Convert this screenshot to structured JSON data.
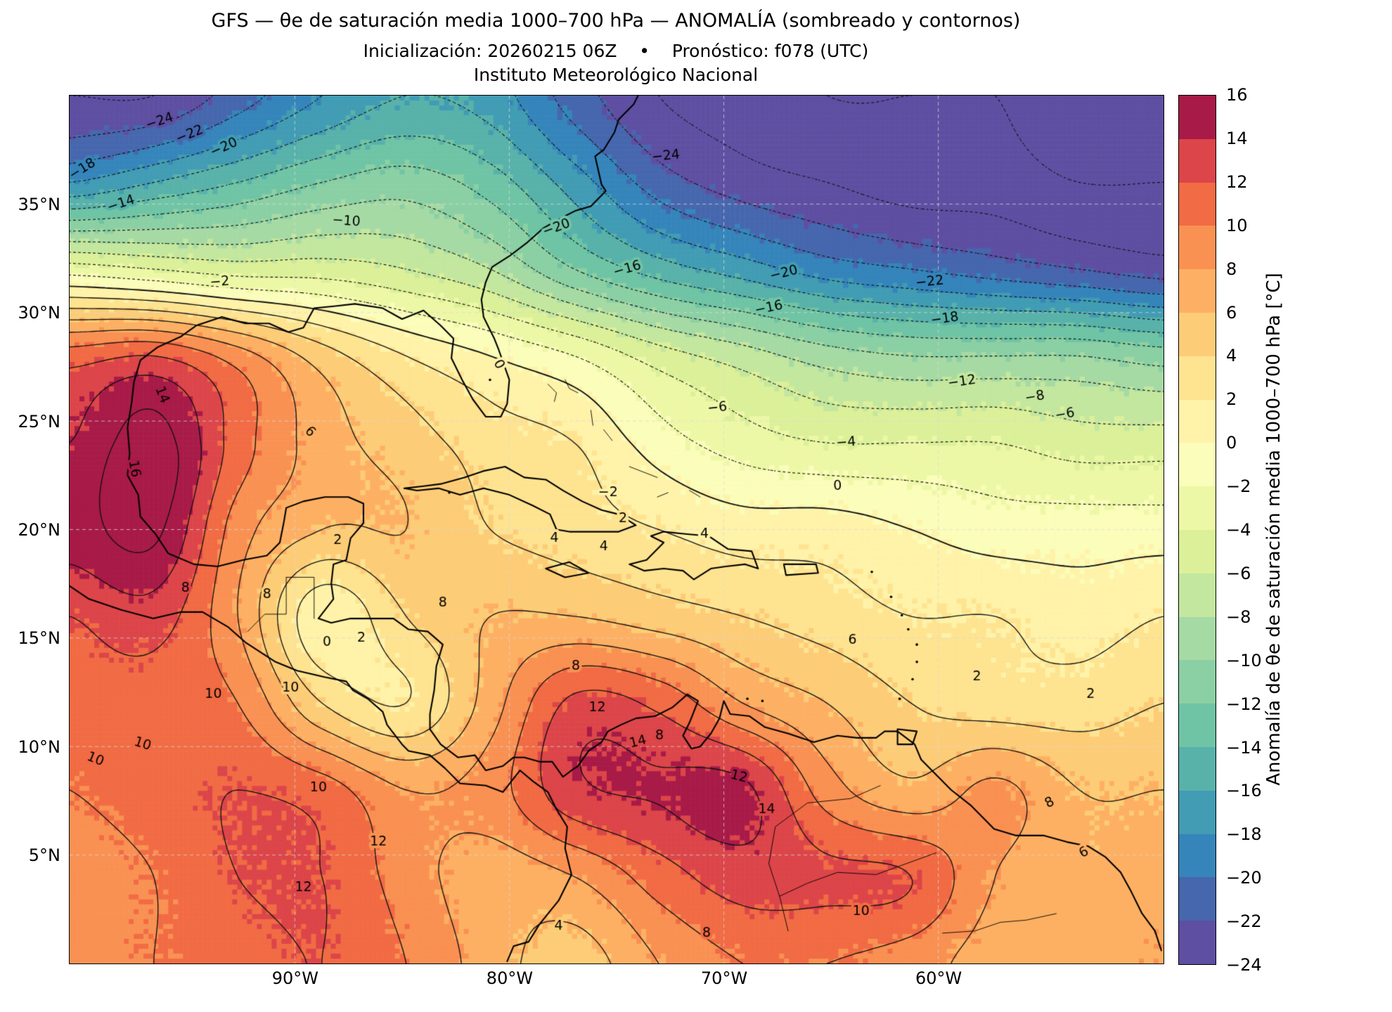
{
  "header": {
    "title": "GFS — θe de saturación media 1000–700 hPa — ANOMALÍA (sombreado y contornos)",
    "subtitle": "Inicialización: 20260215 06Z    •    Pronóstico: f078 (UTC)",
    "institution": "Instituto Meteorológico Nacional"
  },
  "chart_data": {
    "type": "heatmap",
    "model": "GFS",
    "variable": "θe de saturación media 1000–700 hPa",
    "mode": "ANOMALÍA (sombreado y contornos)",
    "init": "20260215 06Z",
    "forecast": "f078 (UTC)",
    "units": "°C",
    "lon_range": [
      -100.5,
      -49.5
    ],
    "lat_range": [
      0,
      40
    ],
    "x_ticks": [
      {
        "value": -90,
        "label": "90°W"
      },
      {
        "value": -80,
        "label": "80°W"
      },
      {
        "value": -70,
        "label": "70°W"
      },
      {
        "value": -60,
        "label": "60°W"
      }
    ],
    "y_ticks": [
      {
        "value": 35,
        "label": "35°N"
      },
      {
        "value": 30,
        "label": "30°N"
      },
      {
        "value": 25,
        "label": "25°N"
      },
      {
        "value": 20,
        "label": "20°N"
      },
      {
        "value": 15,
        "label": "15°N"
      },
      {
        "value": 10,
        "label": "10°N"
      },
      {
        "value": 5,
        "label": "5°N"
      }
    ],
    "contour_min": -26,
    "contour_max": 16,
    "contour_interval": 2,
    "colorbar": {
      "label": "Anomalía de θe de saturación media 1000–700 hPa [°C]",
      "min": -24,
      "max": 16,
      "bin_size": 2,
      "ticks": [
        16,
        14,
        12,
        10,
        8,
        6,
        4,
        2,
        0,
        -2,
        -4,
        -6,
        -8,
        -10,
        -12,
        -14,
        -16,
        -18,
        -20,
        -22,
        -24
      ],
      "palette": [
        "#5e4fa2",
        "#4667ae",
        "#3585bb",
        "#419cb4",
        "#58b2aa",
        "#6fc4a5",
        "#8bd0a4",
        "#a6daa4",
        "#c3e79e",
        "#dbf099",
        "#edf8a6",
        "#fbfdba",
        "#fff2a9",
        "#fee390",
        "#fdcc77",
        "#fdb063",
        "#f99153",
        "#f16b44",
        "#dc4549",
        "#a81a47"
      ]
    },
    "grid": {
      "lons": [
        -100.5,
        -96.6,
        -92.7,
        -88.7,
        -84.8,
        -80.9,
        -77.0,
        -73.0,
        -69.1,
        -65.2,
        -61.3,
        -57.3,
        -53.4,
        -49.5
      ],
      "lats": [
        40,
        36,
        32,
        28,
        24,
        20,
        16,
        12,
        8,
        4,
        0
      ],
      "values_degC": [
        [
          -24,
          -24,
          -21,
          -18,
          -16,
          -17,
          -21,
          -24,
          -25,
          -26,
          -26,
          -26,
          -27,
          -27
        ],
        [
          -18,
          -16,
          -14,
          -12,
          -11,
          -13,
          -17,
          -21,
          -23,
          -24,
          -25,
          -25,
          -26,
          -26
        ],
        [
          -3,
          -4,
          -5,
          -5,
          -6,
          -8,
          -12,
          -15,
          -17,
          -19,
          -20,
          -21,
          -22,
          -23
        ],
        [
          11,
          12,
          9,
          5,
          2,
          0,
          -2,
          -5,
          -7,
          -9,
          -10,
          -10,
          -10,
          -11
        ],
        [
          14,
          17,
          11,
          7,
          5,
          3,
          2,
          -1,
          -3,
          -4,
          -4,
          -4,
          -5,
          -5
        ],
        [
          15,
          16.5,
          9,
          6,
          6,
          4,
          3,
          2,
          1,
          1,
          0,
          -1,
          -1,
          -1
        ],
        [
          12,
          13,
          8,
          0.5,
          4,
          6,
          6,
          5,
          4,
          3,
          2,
          2,
          1,
          2
        ],
        [
          11,
          11,
          10,
          4,
          2,
          7,
          12.5,
          11.5,
          8,
          6,
          4,
          3,
          3,
          4
        ],
        [
          10,
          11,
          12,
          11,
          8,
          9,
          13.5,
          14.2,
          14.5,
          9,
          6.5,
          8.5,
          6,
          6
        ],
        [
          9,
          10,
          12,
          12,
          9,
          7,
          8,
          11,
          13,
          12.5,
          12,
          8,
          6.5,
          7
        ],
        [
          9,
          10,
          11,
          12,
          10,
          7,
          5,
          8,
          10,
          10,
          9,
          7,
          7,
          8
        ]
      ]
    },
    "contour_labels": [
      {
        "v": -24,
        "lon": -96.3,
        "lat": 38.8,
        "a": -18
      },
      {
        "v": -22,
        "lon": -94.9,
        "lat": 38.2,
        "a": -22
      },
      {
        "v": -20,
        "lon": -93.3,
        "lat": 37.6,
        "a": -24
      },
      {
        "v": -18,
        "lon": -99.9,
        "lat": 36.6,
        "a": -32
      },
      {
        "v": -14,
        "lon": -98.1,
        "lat": 35.0,
        "a": -18
      },
      {
        "v": -10,
        "lon": -87.6,
        "lat": 34.2,
        "a": 4
      },
      {
        "v": -2,
        "lon": -93.5,
        "lat": 31.4,
        "a": -4
      },
      {
        "v": -24,
        "lon": -72.7,
        "lat": 37.2,
        "a": -6
      },
      {
        "v": -20,
        "lon": -67.2,
        "lat": 31.8,
        "a": -14
      },
      {
        "v": -16,
        "lon": -67.9,
        "lat": 30.2,
        "a": -12
      },
      {
        "v": -22,
        "lon": -60.4,
        "lat": 31.4,
        "a": -6
      },
      {
        "v": -18,
        "lon": -59.7,
        "lat": 29.7,
        "a": -8
      },
      {
        "v": -12,
        "lon": -58.9,
        "lat": 26.8,
        "a": -8
      },
      {
        "v": -8,
        "lon": -55.5,
        "lat": 26.1,
        "a": -10
      },
      {
        "v": -6,
        "lon": -54.1,
        "lat": 25.3,
        "a": -10
      },
      {
        "v": -4,
        "lon": -64.3,
        "lat": 24.0,
        "a": -4
      },
      {
        "v": -2,
        "lon": -75.4,
        "lat": 21.7,
        "a": 0
      },
      {
        "v": -6,
        "lon": -70.3,
        "lat": 25.6,
        "a": -6
      },
      {
        "v": -16,
        "lon": -74.5,
        "lat": 32.0,
        "a": -16
      },
      {
        "v": -20,
        "lon": -77.8,
        "lat": 33.9,
        "a": -20
      },
      {
        "v": 0,
        "lon": -80.5,
        "lat": 27.6,
        "a": 62
      },
      {
        "v": 0,
        "lon": -64.7,
        "lat": 22.0,
        "a": -2
      },
      {
        "v": 2,
        "lon": -74.7,
        "lat": 20.5,
        "a": 0
      },
      {
        "v": 4,
        "lon": -77.9,
        "lat": 19.6,
        "a": 0
      },
      {
        "v": 4,
        "lon": -75.6,
        "lat": 19.2,
        "a": 0
      },
      {
        "v": 6,
        "lon": -89.3,
        "lat": 24.5,
        "a": 46
      },
      {
        "v": 8,
        "lon": -95.1,
        "lat": 17.3,
        "a": 0
      },
      {
        "v": 8,
        "lon": -76.9,
        "lat": 13.7,
        "a": 0
      },
      {
        "v": 10,
        "lon": -93.8,
        "lat": 12.4,
        "a": 0
      },
      {
        "v": 10,
        "lon": -90.2,
        "lat": 12.7,
        "a": 0
      },
      {
        "v": 12,
        "lon": -75.9,
        "lat": 11.8,
        "a": 0
      },
      {
        "v": 14,
        "lon": -74.0,
        "lat": 10.2,
        "a": -14
      },
      {
        "v": 12,
        "lon": -69.3,
        "lat": 8.6,
        "a": 14
      },
      {
        "v": 14,
        "lon": -68.0,
        "lat": 7.1,
        "a": 0
      },
      {
        "v": 16,
        "lon": -97.5,
        "lat": 22.8,
        "a": 80
      },
      {
        "v": 14,
        "lon": -96.2,
        "lat": 26.2,
        "a": 68
      },
      {
        "v": 12,
        "lon": -89.6,
        "lat": 3.5,
        "a": 0
      },
      {
        "v": 10,
        "lon": -97.1,
        "lat": 10.1,
        "a": 18
      },
      {
        "v": 10,
        "lon": -99.3,
        "lat": 9.4,
        "a": 22
      },
      {
        "v": 8,
        "lon": -91.3,
        "lat": 17.0,
        "a": 0
      },
      {
        "v": 2,
        "lon": -86.9,
        "lat": 15.0,
        "a": 0
      },
      {
        "v": 0,
        "lon": -88.5,
        "lat": 14.8,
        "a": 0
      },
      {
        "v": 2,
        "lon": -88.0,
        "lat": 19.5,
        "a": 0
      },
      {
        "v": 2,
        "lon": -58.2,
        "lat": 13.2,
        "a": 0
      },
      {
        "v": 2,
        "lon": -52.9,
        "lat": 12.4,
        "a": 0
      },
      {
        "v": 6,
        "lon": -64.0,
        "lat": 14.9,
        "a": 0
      },
      {
        "v": 8,
        "lon": -54.8,
        "lat": 7.4,
        "a": -28
      },
      {
        "v": 6,
        "lon": -53.2,
        "lat": 5.1,
        "a": -30
      },
      {
        "v": 10,
        "lon": -63.6,
        "lat": 2.4,
        "a": 0
      },
      {
        "v": 8,
        "lon": -70.8,
        "lat": 1.4,
        "a": 0
      },
      {
        "v": 4,
        "lon": -77.7,
        "lat": 1.7,
        "a": 0
      },
      {
        "v": 10,
        "lon": -88.9,
        "lat": 8.1,
        "a": 0
      },
      {
        "v": 12,
        "lon": -86.1,
        "lat": 5.6,
        "a": 0
      },
      {
        "v": 8,
        "lon": -83.1,
        "lat": 16.6,
        "a": 0
      },
      {
        "v": 4,
        "lon": -70.9,
        "lat": 19.8,
        "a": 0
      },
      {
        "v": 8,
        "lon": -73.0,
        "lat": 10.5,
        "a": 0
      }
    ]
  }
}
